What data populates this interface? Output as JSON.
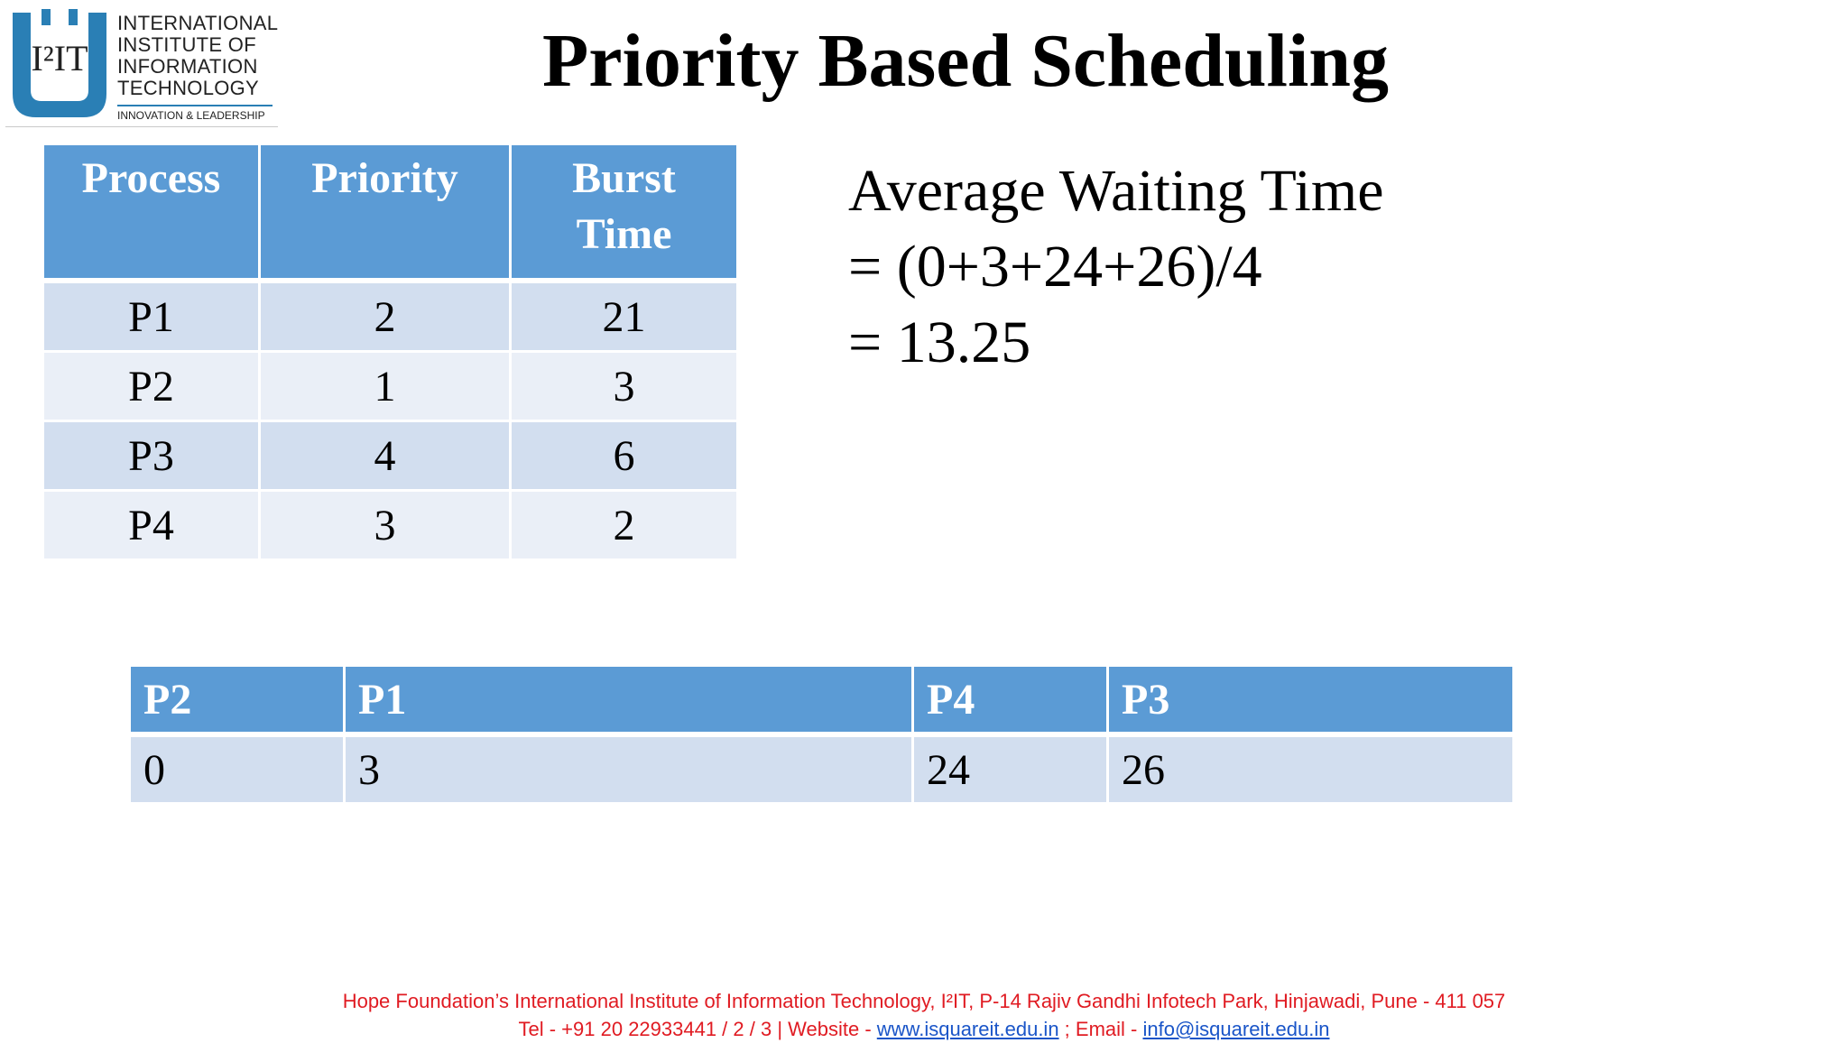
{
  "logo": {
    "mark": "I²IT",
    "lines": [
      "INTERNATIONAL",
      "INSTITUTE OF",
      "INFORMATION",
      "TECHNOLOGY"
    ],
    "tagline": "INNOVATION & LEADERSHIP"
  },
  "title": "Priority Based Scheduling",
  "process_table": {
    "headers": [
      "Process",
      "Priority",
      "Burst Time"
    ],
    "rows": [
      [
        "P1",
        "2",
        "21"
      ],
      [
        "P2",
        "1",
        "3"
      ],
      [
        "P3",
        "4",
        "6"
      ],
      [
        "P4",
        "3",
        "2"
      ]
    ]
  },
  "average": {
    "line1": "Average Waiting Time",
    "line2": "= (0+3+24+26)/4",
    "line3": "= 13.25"
  },
  "gantt": {
    "processes": [
      "P2",
      "P1",
      "P4",
      "P3"
    ],
    "times": [
      "0",
      "3",
      "24",
      "26"
    ]
  },
  "footer": {
    "line1": "Hope Foundation’s International Institute of Information Technology, I²IT, P-14 Rajiv Gandhi Infotech Park, Hinjawadi, Pune - 411 057",
    "tel": "Tel - +91 20 22933441 / 2 / 3  |  Website - ",
    "website": "www.isquareit.edu.in",
    "email_prefix": " ; Email - ",
    "email": "info@isquareit.edu.in"
  },
  "colors": {
    "header_blue": "#5b9bd5",
    "row_dark": "#d2deef",
    "row_light": "#eaeff7",
    "footer_red": "#e01b22",
    "link_blue": "#1a55c8"
  }
}
